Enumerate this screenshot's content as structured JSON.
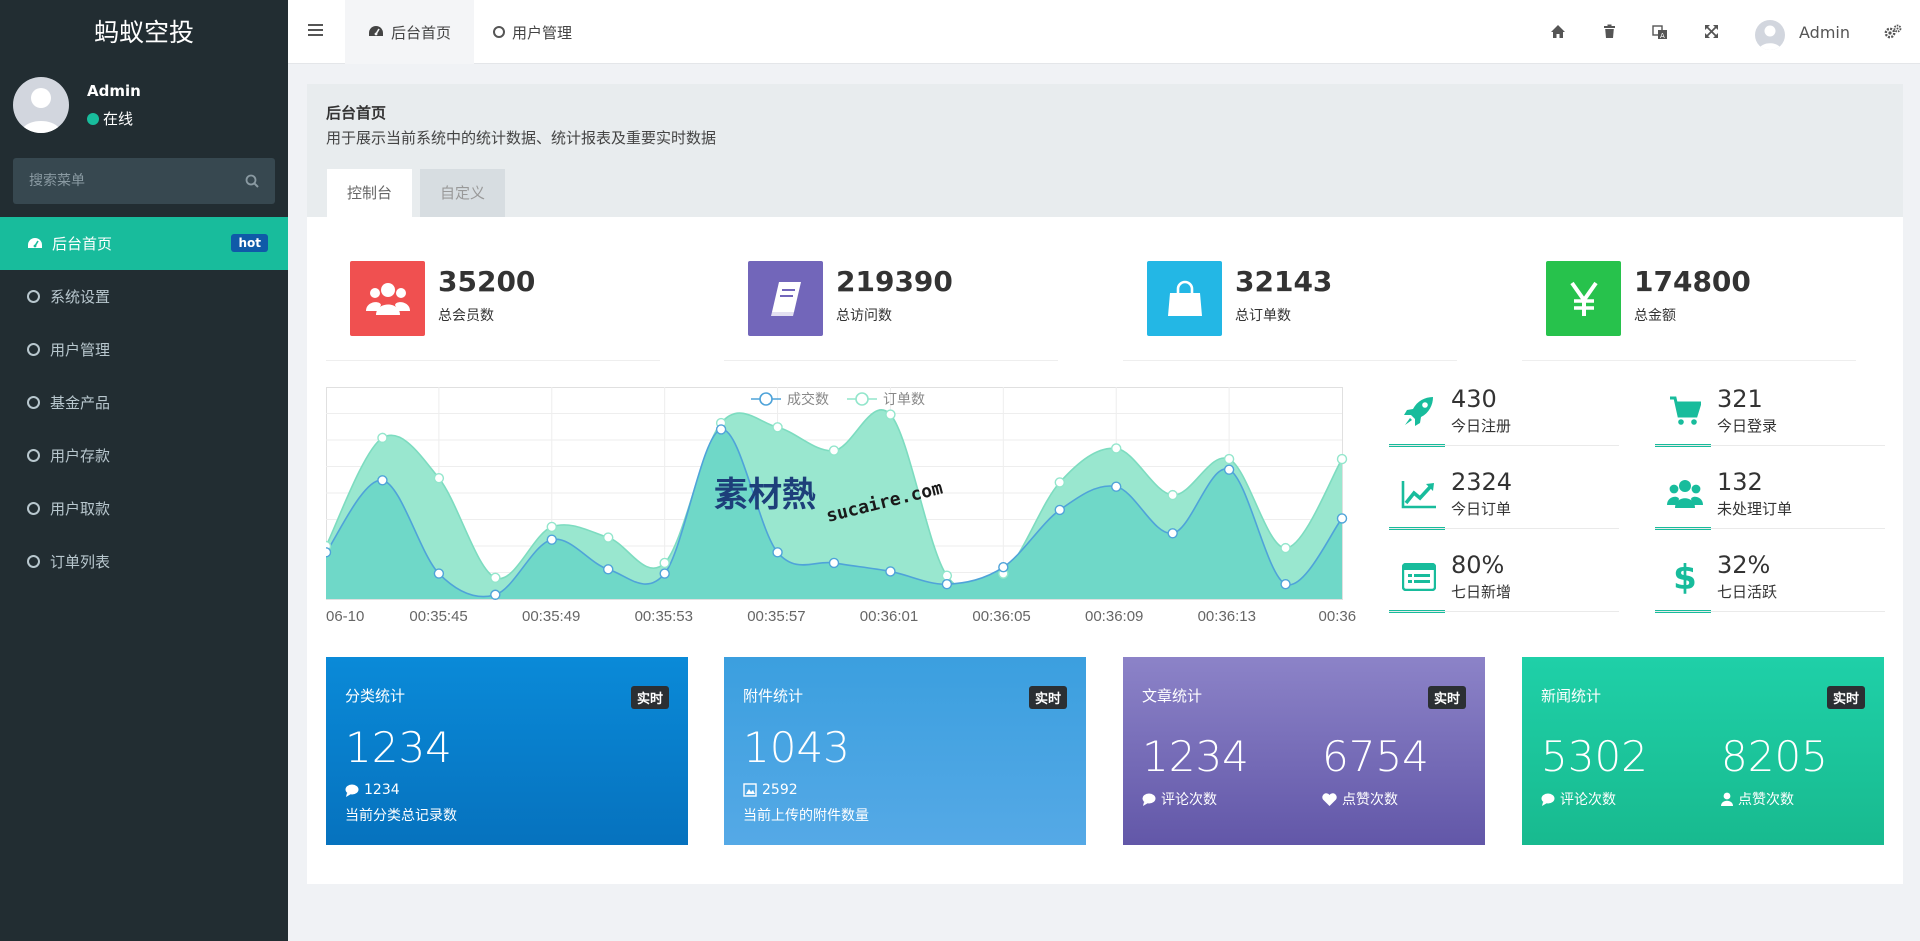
{
  "app": {
    "title": "蚂蚁空投"
  },
  "user": {
    "name": "Admin",
    "status": "在线"
  },
  "search": {
    "placeholder": "搜索菜单"
  },
  "menu": {
    "items": [
      {
        "label": "后台首页",
        "badge": "hot",
        "active": true
      },
      {
        "label": "系统设置"
      },
      {
        "label": "用户管理"
      },
      {
        "label": "基金产品"
      },
      {
        "label": "用户存款"
      },
      {
        "label": "用户取款"
      },
      {
        "label": "订单列表"
      }
    ]
  },
  "header": {
    "tabs": [
      {
        "label": "后台首页"
      },
      {
        "label": "用户管理"
      }
    ],
    "icons": [
      "home-icon",
      "trash-icon",
      "translate-icon",
      "fullscreen-icon",
      "settings-icon"
    ],
    "username": "Admin"
  },
  "page": {
    "title": "后台首页",
    "description": "用于展示当前系统中的统计数据、统计报表及重要实时数据",
    "tabs": [
      {
        "label": "控制台"
      },
      {
        "label": "自定义"
      }
    ]
  },
  "stats": [
    {
      "value": "35200",
      "label": "总会员数",
      "color": "#f05050",
      "icon": "users-icon"
    },
    {
      "value": "219390",
      "label": "总访问数",
      "color": "#7266ba",
      "icon": "book-icon"
    },
    {
      "value": "32143",
      "label": "总订单数",
      "color": "#23b7e5",
      "icon": "shopping-bag-icon"
    },
    {
      "value": "174800",
      "label": "总金额",
      "color": "#27c24c",
      "icon": "yen-icon"
    }
  ],
  "mini_stats": [
    {
      "value": "430",
      "label": "今日注册",
      "icon": "rocket-icon"
    },
    {
      "value": "321",
      "label": "今日登录",
      "icon": "cart-icon"
    },
    {
      "value": "2324",
      "label": "今日订单",
      "icon": "line-chart-icon"
    },
    {
      "value": "132",
      "label": "未处理订单",
      "icon": "users-icon"
    },
    {
      "value": "80%",
      "label": "七日新增",
      "icon": "list-icon"
    },
    {
      "value": "32%",
      "label": "七日活跃",
      "icon": "dollar-icon"
    }
  ],
  "chart_data": {
    "type": "area",
    "x_tick_labels": [
      "06-10",
      "00:35:45",
      "00:35:49",
      "00:35:53",
      "00:35:57",
      "00:36:01",
      "00:36:05",
      "00:36:09",
      "00:36:13",
      "00:36:"
    ],
    "series": [
      {
        "name": "成交数",
        "color": "#6fd8c8",
        "values": [
          0.22,
          0.56,
          0.12,
          0.02,
          0.28,
          0.14,
          0.12,
          0.8,
          0.22,
          0.17,
          0.13,
          0.07,
          0.15,
          0.42,
          0.53,
          0.31,
          0.61,
          0.07,
          0.38
        ]
      },
      {
        "name": "订单数",
        "color": "#93e6cc",
        "values": [
          0.25,
          0.76,
          0.57,
          0.1,
          0.34,
          0.29,
          0.17,
          0.83,
          0.81,
          0.7,
          0.87,
          0.11,
          0.12,
          0.55,
          0.71,
          0.49,
          0.66,
          0.24,
          0.66
        ]
      }
    ],
    "legend_position": "top-center",
    "grid": true
  },
  "info_boxes": [
    {
      "title": "分类统计",
      "badge": "实时",
      "value": "1234",
      "sub_value": "1234",
      "description": "当前分类总记录数"
    },
    {
      "title": "附件统计",
      "badge": "实时",
      "value": "1043",
      "sub_value": "2592",
      "description": "当前上传的附件数量"
    },
    {
      "title": "文章统计",
      "badge": "实时",
      "value_a": "1234",
      "label_a": "评论次数",
      "value_b": "6754",
      "label_b": "点赞次数"
    },
    {
      "title": "新闻统计",
      "badge": "实时",
      "value_a": "5302",
      "label_a": "评论次数",
      "value_b": "8205",
      "label_b": "点赞次数"
    }
  ],
  "watermark": {
    "text_cn": "素材熱",
    "text_en": "sucaire.com"
  }
}
